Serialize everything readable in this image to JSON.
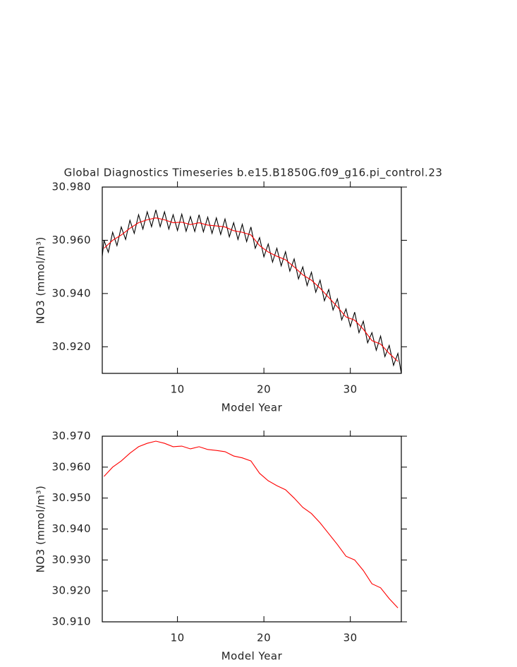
{
  "chart_data": [
    {
      "type": "line",
      "title": "Global Diagnostics Timeseries b.e15.B1850G.f09_g16.pi_control.23",
      "xlabel": "Model Year",
      "ylabel": "NO3 (mmol/m³)",
      "xlim": [
        1.3,
        35.9
      ],
      "xticks": [
        10,
        20,
        30
      ],
      "ylim": [
        30.91,
        30.98
      ],
      "yticks": [
        {
          "value": 30.92,
          "label": "30.920"
        },
        {
          "value": 30.94,
          "label": "30.940"
        },
        {
          "value": 30.96,
          "label": "30.960"
        },
        {
          "value": 30.98,
          "label": "30.980"
        }
      ],
      "series": [
        {
          "color": "#000000",
          "x": [
            1.3,
            1.5,
            2.0,
            2.5,
            3.0,
            3.5,
            4.0,
            4.5,
            5.0,
            5.5,
            6.0,
            6.5,
            7.0,
            7.5,
            8.0,
            8.5,
            9.0,
            9.5,
            10.0,
            10.5,
            11.0,
            11.5,
            12.0,
            12.5,
            13.0,
            13.5,
            14.0,
            14.5,
            15.0,
            15.5,
            16.0,
            16.5,
            17.0,
            17.5,
            18.0,
            18.5,
            19.0,
            19.5,
            20.0,
            20.5,
            21.0,
            21.5,
            22.0,
            22.5,
            23.0,
            23.5,
            24.0,
            24.5,
            25.0,
            25.5,
            26.0,
            26.5,
            27.0,
            27.5,
            28.0,
            28.5,
            29.0,
            29.5,
            30.0,
            30.5,
            31.0,
            31.5,
            32.0,
            32.5,
            33.0,
            33.5,
            34.0,
            34.5,
            35.0,
            35.5,
            35.9
          ],
          "values": [
            30.954,
            30.96,
            30.9555,
            30.963,
            30.958,
            30.965,
            30.9603,
            30.9675,
            30.9626,
            30.9696,
            30.9642,
            30.9707,
            30.9651,
            30.9714,
            30.9651,
            30.9707,
            30.9642,
            30.9696,
            30.9637,
            30.9698,
            30.9634,
            30.9689,
            30.9633,
            30.9696,
            30.9632,
            30.9687,
            30.9626,
            30.9684,
            30.9622,
            30.968,
            30.9613,
            30.9666,
            30.9603,
            30.966,
            30.9595,
            30.965,
            30.957,
            30.961,
            30.9538,
            30.9586,
            30.9518,
            30.957,
            30.9504,
            30.9557,
            30.9484,
            30.953,
            30.9455,
            30.95,
            30.943,
            30.948,
            30.9405,
            30.945,
            30.9373,
            30.9415,
            30.9338,
            30.938,
            30.9301,
            30.9342,
            30.9276,
            30.933,
            30.9253,
            30.9296,
            30.9215,
            30.9253,
            30.9187,
            30.924,
            30.9163,
            30.9205,
            30.913,
            30.9175,
            30.91
          ]
        },
        {
          "color": "#ff0000",
          "x": [
            1.5,
            2.5,
            3.5,
            4.5,
            5.5,
            6.5,
            7.5,
            8.5,
            9.5,
            10.5,
            11.5,
            12.5,
            13.5,
            14.5,
            15.5,
            16.5,
            17.5,
            18.5,
            19.5,
            20.5,
            21.5,
            22.5,
            23.5,
            24.5,
            25.5,
            26.5,
            27.5,
            28.5,
            29.5,
            30.5,
            31.5,
            32.5,
            33.5,
            34.5,
            35.5
          ],
          "values": [
            30.957,
            30.96,
            30.962,
            30.9645,
            30.9666,
            30.9677,
            30.9684,
            30.9677,
            30.9666,
            30.9668,
            30.9659,
            30.9666,
            30.9657,
            30.9654,
            30.965,
            30.9636,
            30.963,
            30.962,
            30.958,
            30.9556,
            30.954,
            30.9527,
            30.95,
            30.947,
            30.945,
            30.942,
            30.9385,
            30.935,
            30.9312,
            30.93,
            30.9266,
            30.9223,
            30.921,
            30.9175,
            30.9145
          ]
        }
      ]
    },
    {
      "type": "line",
      "xlabel": "Model Year",
      "ylabel": "NO3 (mmol/m³)",
      "xlim": [
        1.3,
        35.9
      ],
      "xticks": [
        10,
        20,
        30
      ],
      "ylim": [
        30.91,
        30.97
      ],
      "yticks": [
        {
          "value": 30.91,
          "label": "30.910"
        },
        {
          "value": 30.92,
          "label": "30.920"
        },
        {
          "value": 30.93,
          "label": "30.930"
        },
        {
          "value": 30.94,
          "label": "30.940"
        },
        {
          "value": 30.95,
          "label": "30.950"
        },
        {
          "value": 30.96,
          "label": "30.960"
        },
        {
          "value": 30.97,
          "label": "30.970"
        }
      ],
      "series": [
        {
          "color": "#ff0000",
          "x": [
            1.5,
            2.5,
            3.5,
            4.5,
            5.5,
            6.5,
            7.5,
            8.5,
            9.5,
            10.5,
            11.5,
            12.5,
            13.5,
            14.5,
            15.5,
            16.5,
            17.5,
            18.5,
            19.5,
            20.5,
            21.5,
            22.5,
            23.5,
            24.5,
            25.5,
            26.5,
            27.5,
            28.5,
            29.5,
            30.5,
            31.5,
            32.5,
            33.5,
            34.5,
            35.5
          ],
          "values": [
            30.957,
            30.96,
            30.962,
            30.9645,
            30.9666,
            30.9677,
            30.9684,
            30.9677,
            30.9666,
            30.9668,
            30.9659,
            30.9666,
            30.9657,
            30.9654,
            30.965,
            30.9636,
            30.963,
            30.962,
            30.958,
            30.9556,
            30.954,
            30.9527,
            30.95,
            30.947,
            30.945,
            30.942,
            30.9385,
            30.935,
            30.9312,
            30.93,
            30.9266,
            30.9223,
            30.921,
            30.9175,
            30.9145
          ]
        }
      ]
    }
  ]
}
